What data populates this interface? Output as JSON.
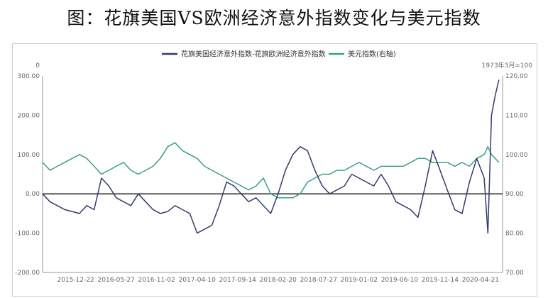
{
  "title": "图：花旗美国VS欧洲经济意外指数变化与美元指数",
  "chart_data": {
    "type": "line",
    "legend_position": "top",
    "grid": false,
    "left_axis": {
      "top_label": "0",
      "ylim": [
        -200,
        300
      ],
      "ticks": [
        "300.00",
        "200.00",
        "100.00",
        "0.00",
        "-100.00",
        "-200.00"
      ],
      "tick_values": [
        300,
        200,
        100,
        0,
        -100,
        -200
      ]
    },
    "right_axis": {
      "top_label": "1973年3月=100",
      "ylim": [
        70,
        120
      ],
      "ticks": [
        "120.00",
        "110.00",
        "100.00",
        "90.00",
        "80.00",
        "70.00"
      ],
      "tick_values": [
        120,
        110,
        100,
        90,
        80,
        70
      ]
    },
    "x_ticks": [
      "2015-12-22",
      "2016-05-27",
      "2016-11-02",
      "2017-04-10",
      "2017-09-14",
      "2018-02-20",
      "2018-07-27",
      "2019-01-02",
      "2019-06-10",
      "2019-11-14",
      "2020-04-21"
    ],
    "x_tick_positions": [
      0.5,
      6.0,
      11.5,
      17.0,
      22.5,
      28.0,
      33.5,
      39.0,
      44.5,
      50.0,
      55.5
    ],
    "x_range": [
      -4,
      58.5
    ],
    "series": [
      {
        "name": "花旗美国经济意外指数-花旗欧洲经济意外指数",
        "axis": "left",
        "color": "#353c6b",
        "points": [
          [
            -4,
            0
          ],
          [
            -3,
            -20
          ],
          [
            -2,
            -30
          ],
          [
            -1,
            -40
          ],
          [
            0,
            -45
          ],
          [
            1,
            -50
          ],
          [
            2,
            -30
          ],
          [
            3,
            -40
          ],
          [
            4,
            40
          ],
          [
            5,
            20
          ],
          [
            6,
            -10
          ],
          [
            7,
            -20
          ],
          [
            8,
            -30
          ],
          [
            9,
            0
          ],
          [
            10,
            -20
          ],
          [
            11,
            -40
          ],
          [
            12,
            -50
          ],
          [
            13,
            -45
          ],
          [
            14,
            -30
          ],
          [
            15,
            -40
          ],
          [
            16,
            -50
          ],
          [
            17,
            -100
          ],
          [
            18,
            -90
          ],
          [
            19,
            -80
          ],
          [
            20,
            -30
          ],
          [
            21,
            30
          ],
          [
            22,
            20
          ],
          [
            23,
            0
          ],
          [
            24,
            -20
          ],
          [
            25,
            -10
          ],
          [
            26,
            -30
          ],
          [
            27,
            -50
          ],
          [
            28,
            0
          ],
          [
            29,
            60
          ],
          [
            30,
            100
          ],
          [
            31,
            120
          ],
          [
            32,
            110
          ],
          [
            33,
            60
          ],
          [
            34,
            20
          ],
          [
            35,
            0
          ],
          [
            36,
            10
          ],
          [
            37,
            20
          ],
          [
            38,
            50
          ],
          [
            39,
            40
          ],
          [
            40,
            30
          ],
          [
            41,
            20
          ],
          [
            42,
            50
          ],
          [
            43,
            20
          ],
          [
            44,
            -20
          ],
          [
            45,
            -30
          ],
          [
            46,
            -40
          ],
          [
            47,
            -60
          ],
          [
            48,
            20
          ],
          [
            49,
            110
          ],
          [
            50,
            60
          ],
          [
            51,
            10
          ],
          [
            52,
            -40
          ],
          [
            53,
            -50
          ],
          [
            54,
            30
          ],
          [
            55,
            90
          ],
          [
            56,
            40
          ],
          [
            56.5,
            -100
          ],
          [
            57,
            200
          ],
          [
            57.5,
            250
          ],
          [
            58,
            290
          ]
        ]
      },
      {
        "name": "美元指数(右轴)",
        "axis": "right",
        "color": "#3a9e8a",
        "points": [
          [
            -4,
            98
          ],
          [
            -3,
            96
          ],
          [
            -2,
            97
          ],
          [
            -1,
            98
          ],
          [
            0,
            99
          ],
          [
            1,
            100
          ],
          [
            2,
            99
          ],
          [
            3,
            97
          ],
          [
            4,
            95
          ],
          [
            5,
            96
          ],
          [
            6,
            97
          ],
          [
            7,
            98
          ],
          [
            8,
            96
          ],
          [
            9,
            95
          ],
          [
            10,
            96
          ],
          [
            11,
            97
          ],
          [
            12,
            99
          ],
          [
            13,
            102
          ],
          [
            14,
            103
          ],
          [
            15,
            101
          ],
          [
            16,
            100
          ],
          [
            17,
            99
          ],
          [
            18,
            97
          ],
          [
            19,
            96
          ],
          [
            20,
            95
          ],
          [
            21,
            94
          ],
          [
            22,
            93
          ],
          [
            23,
            92
          ],
          [
            24,
            91
          ],
          [
            25,
            92
          ],
          [
            26,
            94
          ],
          [
            27,
            90
          ],
          [
            28,
            89
          ],
          [
            29,
            89
          ],
          [
            30,
            89
          ],
          [
            31,
            90
          ],
          [
            32,
            93
          ],
          [
            33,
            94
          ],
          [
            34,
            95
          ],
          [
            35,
            95
          ],
          [
            36,
            96
          ],
          [
            37,
            96
          ],
          [
            38,
            97
          ],
          [
            39,
            98
          ],
          [
            40,
            97
          ],
          [
            41,
            96
          ],
          [
            42,
            97
          ],
          [
            43,
            97
          ],
          [
            44,
            97
          ],
          [
            45,
            97
          ],
          [
            46,
            98
          ],
          [
            47,
            99
          ],
          [
            48,
            99
          ],
          [
            49,
            98
          ],
          [
            50,
            98
          ],
          [
            51,
            98
          ],
          [
            52,
            97
          ],
          [
            53,
            98
          ],
          [
            54,
            97
          ],
          [
            55,
            99
          ],
          [
            56,
            100
          ],
          [
            56.5,
            102
          ],
          [
            57,
            100
          ],
          [
            57.5,
            99
          ],
          [
            58,
            98
          ]
        ]
      }
    ]
  }
}
